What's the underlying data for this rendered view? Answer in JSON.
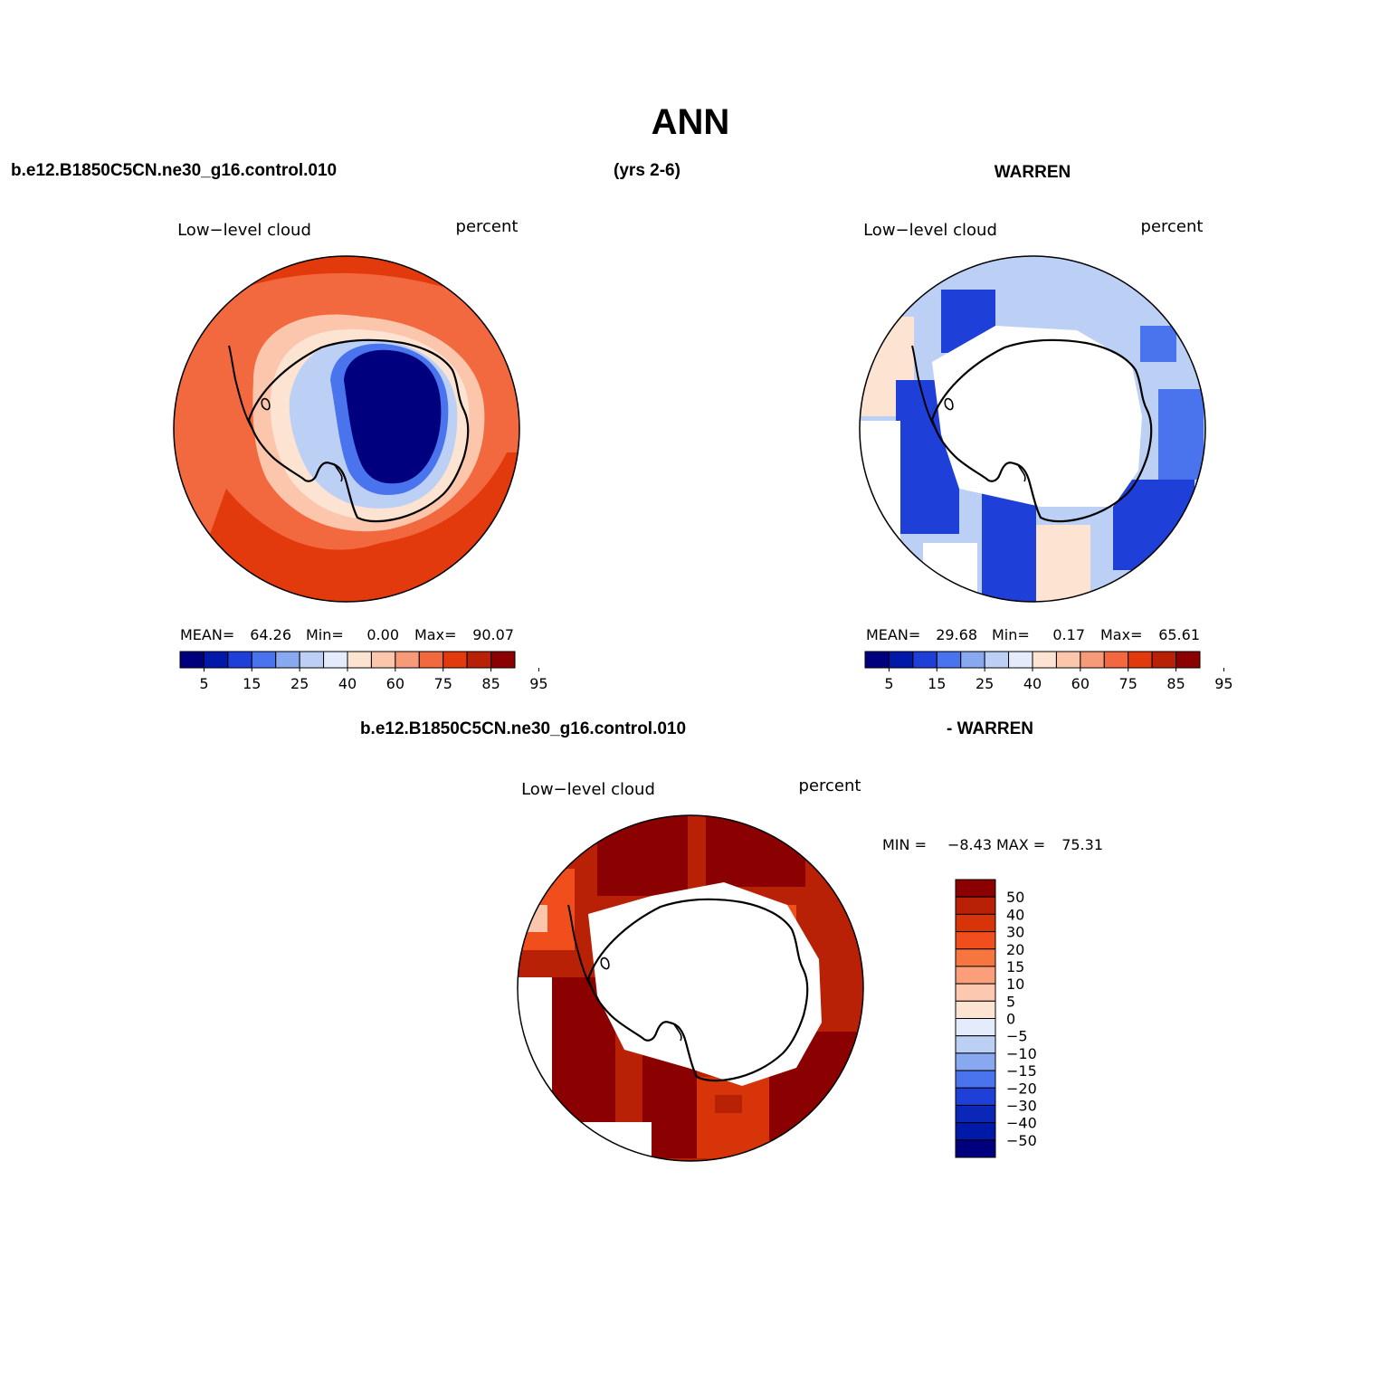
{
  "title": "ANN",
  "header": {
    "left": "b.e12.B1850C5CN.ne30_g16.control.010",
    "center": "(yrs 2-6)",
    "right": "WARREN"
  },
  "diff_header": {
    "left": "b.e12.B1850C5CN.ne30_g16.control.010",
    "right": "- WARREN"
  },
  "panels": [
    {
      "variable": "Low−level cloud",
      "units": "percent",
      "stats": {
        "mean_label": "MEAN=",
        "mean": "64.26",
        "min_label": "Min=",
        "min": "0.00",
        "max_label": "Max=",
        "max": "90.07"
      },
      "tick_labels": [
        "5",
        "15",
        "25",
        "40",
        "60",
        "75",
        "85",
        "95"
      ]
    },
    {
      "variable": "Low−level cloud",
      "units": "percent",
      "stats": {
        "mean_label": "MEAN=",
        "mean": "29.68",
        "min_label": "Min=",
        "min": "0.17",
        "max_label": "Max=",
        "max": "65.61"
      },
      "tick_labels": [
        "5",
        "15",
        "25",
        "40",
        "60",
        "75",
        "85",
        "95"
      ]
    },
    {
      "variable": "Low−level cloud",
      "units": "percent",
      "stats": {
        "min_label": "MIN =",
        "min": "−8.43",
        "max_label": "MAX =",
        "max": "75.31"
      },
      "tick_labels": [
        "50",
        "40",
        "30",
        "20",
        "15",
        "10",
        "5",
        "0",
        "−5",
        "−10",
        "−15",
        "−20",
        "−30",
        "−40",
        "−50"
      ]
    }
  ],
  "colors": {
    "field_scale": [
      "#00007f",
      "#0019a8",
      "#1f3fd9",
      "#4a73ee",
      "#88a8f0",
      "#bcd0f6",
      "#e4ecfb",
      "#fde3d2",
      "#fcc6ad",
      "#f79a78",
      "#f2683f",
      "#e23a0c",
      "#b82106",
      "#8b0000"
    ],
    "diff_scale_top_to_bottom": [
      "#8b0000",
      "#b82106",
      "#d8340a",
      "#f04e1c",
      "#f7753f",
      "#fa9f79",
      "#fdc8b0",
      "#fde3d2",
      "#e4ecfb",
      "#bcd0f6",
      "#88a8f0",
      "#4a73ee",
      "#1f3fd9",
      "#0a27b8",
      "#0019a8",
      "#00007f"
    ]
  }
}
